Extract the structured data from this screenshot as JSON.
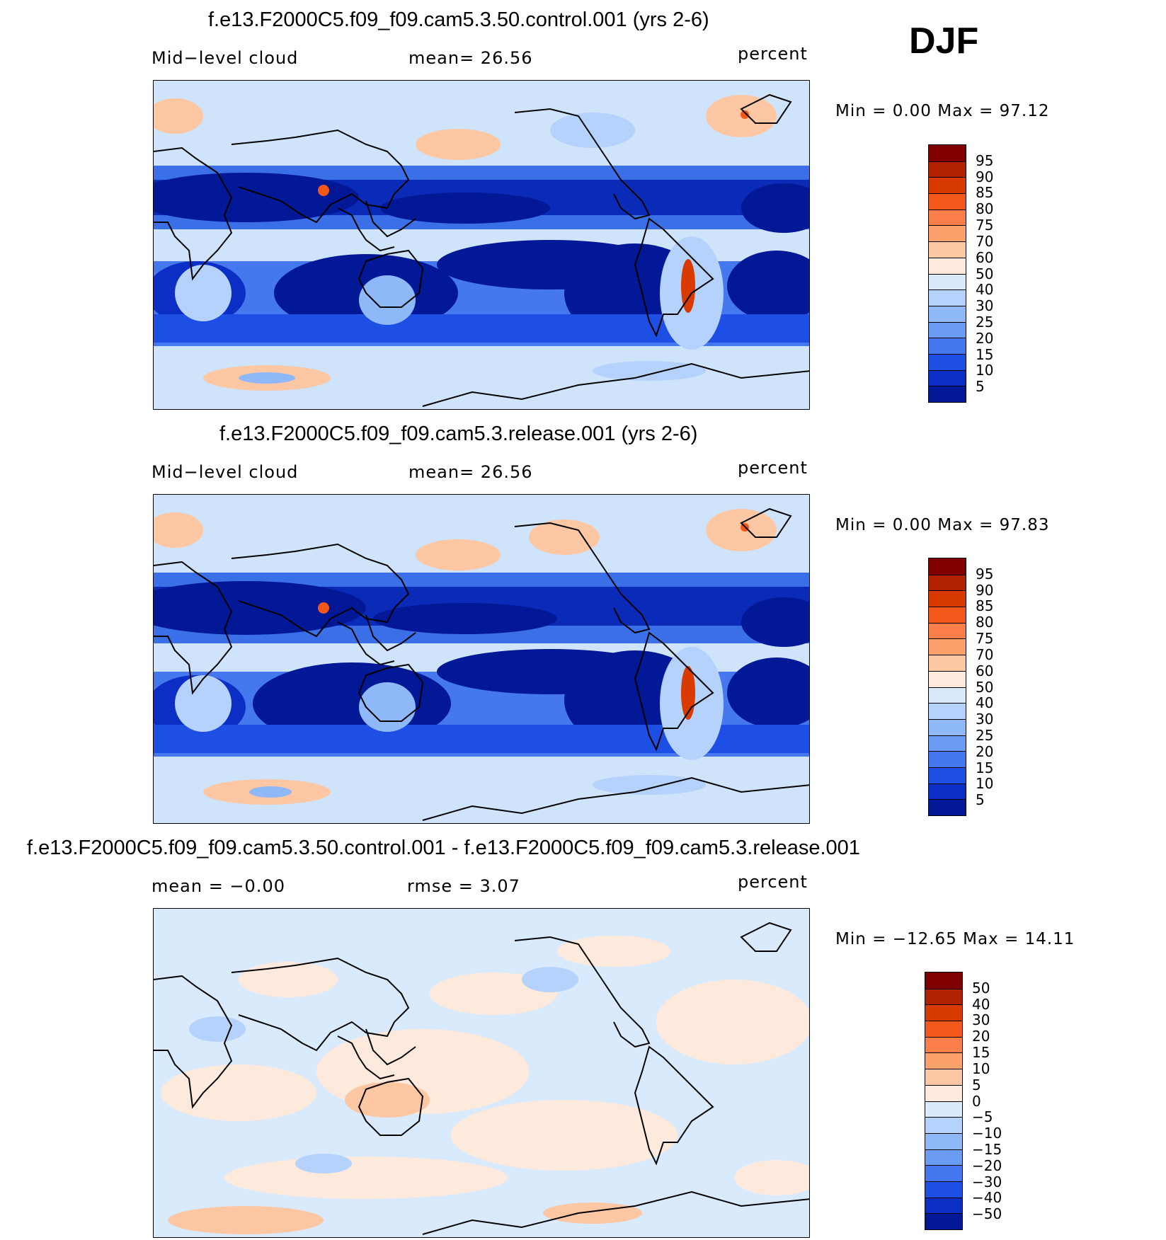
{
  "season_label": "DJF",
  "panels": [
    {
      "title": "f.e13.F2000C5.f09_f09.cam5.3.50.control.001 (yrs 2-6)",
      "left_label": "Mid−level cloud",
      "center_label": "mean=   26.56",
      "right_label": "percent",
      "minmax": "Min  =     0.00  Max  =    97.12"
    },
    {
      "title": "f.e13.F2000C5.f09_f09.cam5.3.release.001 (yrs 2-6)",
      "left_label": "Mid−level cloud",
      "center_label": "mean=   26.56",
      "right_label": "percent",
      "minmax": "Min  =     0.00  Max  =    97.83"
    },
    {
      "title": "f.e13.F2000C5.f09_f09.cam5.3.50.control.001 - f.e13.F2000C5.f09_f09.cam5.3.release.001",
      "left_label": "mean  =    −0.00",
      "center_label": "rmse  =     3.07",
      "right_label": "percent",
      "minmax": "Min  = −12.65  Max  =    14.11"
    }
  ],
  "chart_data": [
    {
      "type": "heatmap",
      "title": "f.e13.F2000C5.f09_f09.cam5.3.50.control.001 (yrs 2-6)",
      "variable": "Mid-level cloud",
      "units": "percent",
      "mean": 26.56,
      "min": 0.0,
      "max": 97.12,
      "colorbar_levels": [
        5,
        10,
        15,
        20,
        25,
        30,
        40,
        50,
        60,
        70,
        75,
        80,
        85,
        90,
        95
      ],
      "colorbar_labels": [
        "95",
        "90",
        "85",
        "80",
        "75",
        "70",
        "60",
        "50",
        "40",
        "30",
        "25",
        "20",
        "15",
        "10",
        "5"
      ],
      "colors": [
        "#800000",
        "#b22200",
        "#d93a00",
        "#f4571a",
        "#fb7d47",
        "#fca06c",
        "#fdc7a3",
        "#feeadc",
        "#d9eafd",
        "#b4d2fb",
        "#8fb8f8",
        "#6a9cf4",
        "#4578ee",
        "#1e4fe4",
        "#0b2fc4",
        "#021896"
      ]
    },
    {
      "type": "heatmap",
      "title": "f.e13.F2000C5.f09_f09.cam5.3.release.001 (yrs 2-6)",
      "variable": "Mid-level cloud",
      "units": "percent",
      "mean": 26.56,
      "min": 0.0,
      "max": 97.83,
      "colorbar_levels": [
        5,
        10,
        15,
        20,
        25,
        30,
        40,
        50,
        60,
        70,
        75,
        80,
        85,
        90,
        95
      ],
      "colorbar_labels": [
        "95",
        "90",
        "85",
        "80",
        "75",
        "70",
        "60",
        "50",
        "40",
        "30",
        "25",
        "20",
        "15",
        "10",
        "5"
      ],
      "colors": [
        "#800000",
        "#b22200",
        "#d93a00",
        "#f4571a",
        "#fb7d47",
        "#fca06c",
        "#fdc7a3",
        "#feeadc",
        "#d9eafd",
        "#b4d2fb",
        "#8fb8f8",
        "#6a9cf4",
        "#4578ee",
        "#1e4fe4",
        "#0b2fc4",
        "#021896"
      ]
    },
    {
      "type": "heatmap",
      "title": "f.e13.F2000C5.f09_f09.cam5.3.50.control.001 - f.e13.F2000C5.f09_f09.cam5.3.release.001",
      "units": "percent",
      "mean": -0.0,
      "rmse": 3.07,
      "min": -12.65,
      "max": 14.11,
      "colorbar_levels": [
        -50,
        -40,
        -30,
        -20,
        -15,
        -10,
        -5,
        0,
        5,
        10,
        15,
        20,
        30,
        40,
        50
      ],
      "colorbar_labels": [
        "50",
        "40",
        "30",
        "20",
        "15",
        "10",
        "5",
        "0",
        "−5",
        "−10",
        "−15",
        "−20",
        "−30",
        "−40",
        "−50"
      ],
      "colors": [
        "#800000",
        "#b22200",
        "#d93a00",
        "#f4571a",
        "#fb7d47",
        "#fca06c",
        "#fdc7a3",
        "#feeadc",
        "#d9eafd",
        "#b4d2fb",
        "#8fb8f8",
        "#6a9cf4",
        "#4578ee",
        "#1e4fe4",
        "#0b2fc4",
        "#021896"
      ]
    }
  ]
}
